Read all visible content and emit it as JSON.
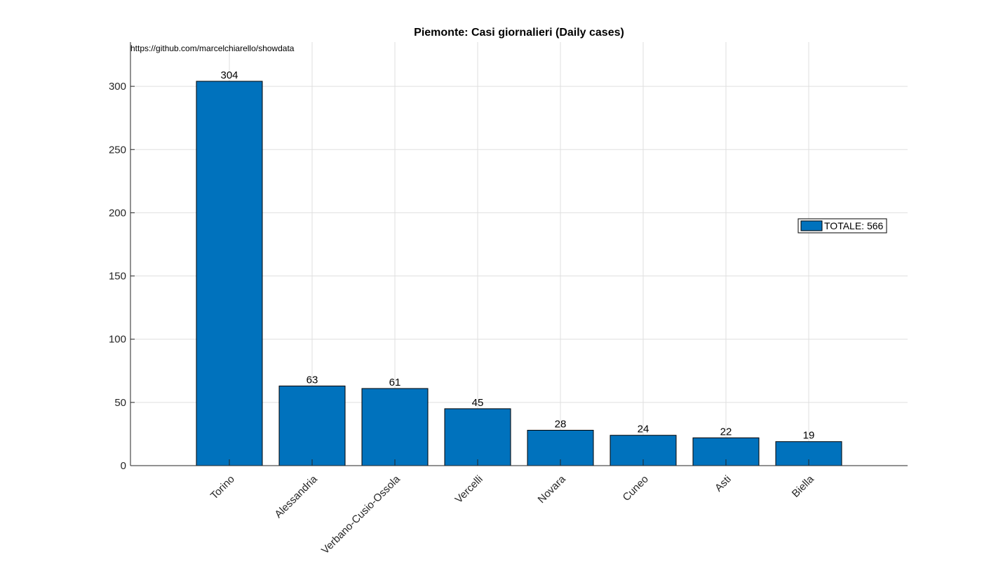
{
  "chart_data": {
    "type": "bar",
    "title": "Piemonte: Casi giornalieri (Daily cases)",
    "source_note": "https://github.com/marcelchiarello/showdata",
    "categories": [
      "Torino",
      "Alessandria",
      "Verbano-Cusio-Ossola",
      "Vercelli",
      "Novara",
      "Cuneo",
      "Asti",
      "Biella"
    ],
    "series": [
      {
        "name": "TOTALE: 566",
        "values": [
          304,
          63,
          61,
          45,
          28,
          24,
          22,
          19
        ]
      }
    ],
    "data_labels": [
      "304",
      "63",
      "61",
      "45",
      "28",
      "24",
      "22",
      "19"
    ],
    "y_ticks": [
      0,
      50,
      100,
      150,
      200,
      250,
      300
    ],
    "ylim": [
      0,
      335
    ],
    "xlabel": "",
    "ylabel": "",
    "grid": true,
    "legend_position": "right",
    "bar_color": "#0072BD",
    "x_tick_rotation_deg": 45
  }
}
